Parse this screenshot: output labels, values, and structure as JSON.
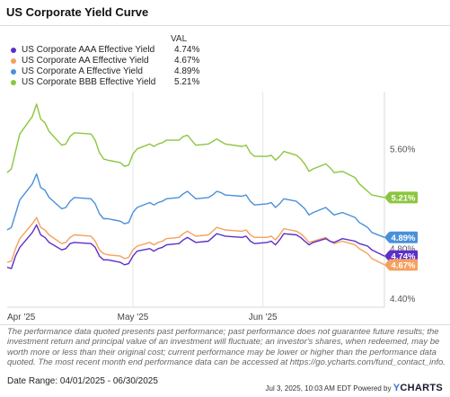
{
  "title": "US Corporate Yield Curve",
  "legend_header": "VAL",
  "disclaimer": "The performance data quoted presents past performance; past performance does not guarantee future results; the investment return and principal value of an investment will fluctuate; an investor's shares, when redeemed, may be worth more or less than their original cost; current performance may be lower or higher than the performance data quoted. The most recent month end performance data can be accessed at https://go.ycharts.com/fund_contact_info.",
  "date_range": "Date Range: 04/01/2025 - 06/30/2025",
  "footer_timestamp": "Jul 3, 2025, 10:03 AM EDT Powered by",
  "brand": {
    "y": "Y",
    "rest": "CHARTS"
  },
  "chart_data": {
    "type": "line",
    "title": "US Corporate Yield Curve",
    "x_labels": [
      "Apr '25",
      "May '25",
      "Jun '25"
    ],
    "x_label_dates": [
      "2025-04-01",
      "2025-05-01",
      "2025-06-01"
    ],
    "x_range": [
      "2025-04-01",
      "2025-06-30"
    ],
    "y_ticks": [
      "5.60%",
      "4.80%",
      "4.40%"
    ],
    "y_tick_values": [
      5.6,
      4.8,
      4.4
    ],
    "ylim": [
      4.33,
      6.06
    ],
    "grid": "vertical",
    "legend_placement": "top-left",
    "dates": [
      "2025-04-01",
      "2025-04-02",
      "2025-04-03",
      "2025-04-04",
      "2025-04-07",
      "2025-04-08",
      "2025-04-09",
      "2025-04-10",
      "2025-04-11",
      "2025-04-14",
      "2025-04-15",
      "2025-04-16",
      "2025-04-17",
      "2025-04-21",
      "2025-04-22",
      "2025-04-23",
      "2025-04-24",
      "2025-04-25",
      "2025-04-28",
      "2025-04-29",
      "2025-04-30",
      "2025-05-01",
      "2025-05-02",
      "2025-05-05",
      "2025-05-06",
      "2025-05-07",
      "2025-05-08",
      "2025-05-09",
      "2025-05-12",
      "2025-05-13",
      "2025-05-14",
      "2025-05-15",
      "2025-05-16",
      "2025-05-19",
      "2025-05-20",
      "2025-05-21",
      "2025-05-22",
      "2025-05-23",
      "2025-05-27",
      "2025-05-28",
      "2025-05-29",
      "2025-05-30",
      "2025-06-02",
      "2025-06-03",
      "2025-06-04",
      "2025-06-05",
      "2025-06-06",
      "2025-06-09",
      "2025-06-10",
      "2025-06-11",
      "2025-06-12",
      "2025-06-13",
      "2025-06-16",
      "2025-06-17",
      "2025-06-18",
      "2025-06-20",
      "2025-06-23",
      "2025-06-24",
      "2025-06-25",
      "2025-06-26",
      "2025-06-27",
      "2025-06-30"
    ],
    "series": [
      {
        "name": "US Corporate AAA Effective Yield",
        "latest": "4.74%",
        "color": "#5b2fc9",
        "values": [
          4.65,
          4.64,
          4.74,
          4.81,
          4.93,
          4.99,
          4.91,
          4.89,
          4.85,
          4.79,
          4.8,
          4.84,
          4.85,
          4.84,
          4.81,
          4.74,
          4.71,
          4.71,
          4.69,
          4.67,
          4.68,
          4.74,
          4.78,
          4.8,
          4.78,
          4.8,
          4.81,
          4.83,
          4.84,
          4.87,
          4.89,
          4.87,
          4.85,
          4.86,
          4.89,
          4.92,
          4.91,
          4.9,
          4.89,
          4.9,
          4.86,
          4.84,
          4.85,
          4.86,
          4.83,
          4.87,
          4.92,
          4.91,
          4.89,
          4.86,
          4.83,
          4.85,
          4.88,
          4.86,
          4.85,
          4.88,
          4.86,
          4.84,
          4.83,
          4.82,
          4.79,
          4.74
        ]
      },
      {
        "name": "US Corporate AA Effective Yield",
        "latest": "4.67%",
        "color": "#f5a15e",
        "values": [
          4.69,
          4.7,
          4.8,
          4.88,
          5.0,
          5.05,
          4.97,
          4.95,
          4.91,
          4.84,
          4.85,
          4.89,
          4.91,
          4.9,
          4.86,
          4.79,
          4.76,
          4.75,
          4.74,
          4.72,
          4.73,
          4.79,
          4.82,
          4.85,
          4.83,
          4.85,
          4.86,
          4.88,
          4.89,
          4.92,
          4.94,
          4.92,
          4.9,
          4.91,
          4.94,
          4.97,
          4.96,
          4.95,
          4.94,
          4.95,
          4.91,
          4.89,
          4.89,
          4.9,
          4.87,
          4.91,
          4.96,
          4.94,
          4.92,
          4.89,
          4.85,
          4.86,
          4.89,
          4.86,
          4.84,
          4.86,
          4.83,
          4.8,
          4.78,
          4.76,
          4.72,
          4.67
        ]
      },
      {
        "name": "US Corporate A Effective Yield",
        "latest": "4.89%",
        "color": "#4a90d9",
        "values": [
          4.95,
          4.97,
          5.08,
          5.19,
          5.32,
          5.4,
          5.29,
          5.27,
          5.21,
          5.12,
          5.13,
          5.18,
          5.21,
          5.2,
          5.16,
          5.08,
          5.04,
          5.04,
          5.02,
          5.0,
          5.01,
          5.09,
          5.13,
          5.17,
          5.15,
          5.17,
          5.18,
          5.2,
          5.21,
          5.24,
          5.26,
          5.23,
          5.2,
          5.21,
          5.23,
          5.26,
          5.25,
          5.23,
          5.22,
          5.23,
          5.18,
          5.15,
          5.16,
          5.17,
          5.13,
          5.16,
          5.2,
          5.18,
          5.15,
          5.12,
          5.07,
          5.09,
          5.13,
          5.1,
          5.07,
          5.09,
          5.05,
          5.01,
          4.99,
          4.97,
          4.93,
          4.89
        ]
      },
      {
        "name": "US Corporate BBB Effective Yield",
        "latest": "5.21%",
        "color": "#8cc63f",
        "values": [
          5.41,
          5.44,
          5.58,
          5.72,
          5.86,
          5.96,
          5.84,
          5.81,
          5.74,
          5.63,
          5.64,
          5.7,
          5.73,
          5.72,
          5.67,
          5.57,
          5.52,
          5.51,
          5.49,
          5.46,
          5.47,
          5.56,
          5.6,
          5.64,
          5.62,
          5.64,
          5.65,
          5.67,
          5.67,
          5.7,
          5.71,
          5.67,
          5.63,
          5.64,
          5.66,
          5.68,
          5.66,
          5.64,
          5.62,
          5.63,
          5.57,
          5.54,
          5.54,
          5.55,
          5.51,
          5.54,
          5.58,
          5.55,
          5.52,
          5.48,
          5.42,
          5.44,
          5.48,
          5.45,
          5.41,
          5.42,
          5.37,
          5.32,
          5.29,
          5.26,
          5.23,
          5.21
        ]
      }
    ]
  }
}
